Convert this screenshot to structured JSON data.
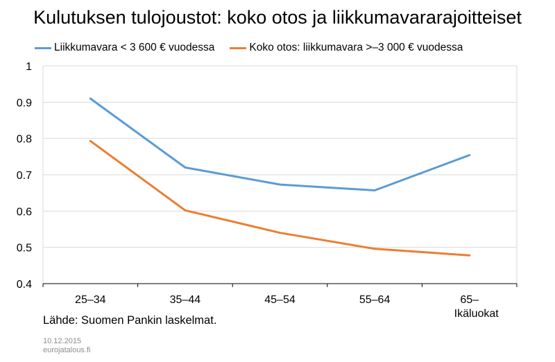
{
  "chart_data": {
    "type": "line",
    "title": "Kulutuksen tulojoustot: koko otos ja liikkumavararajoitteiset",
    "xlabel": "Ikäluokat",
    "ylabel": "",
    "categories": [
      "25–34",
      "35–44",
      "45–54",
      "55–64",
      "65–"
    ],
    "series": [
      {
        "name": "Liikkumavara < 3 600 € vuodessa",
        "color": "#5b9bd5",
        "values": [
          0.91,
          0.72,
          0.673,
          0.657,
          0.754
        ]
      },
      {
        "name": "Koko otos: liikkumavara >–3 000 € vuodessa",
        "color": "#ed7d31",
        "values": [
          0.793,
          0.602,
          0.54,
          0.496,
          0.478
        ]
      }
    ],
    "ylim": [
      0.4,
      1.0
    ],
    "yticks": [
      "0.4",
      "0.5",
      "0.6",
      "0.7",
      "0.8",
      "0.9",
      "1"
    ],
    "grid": true,
    "legend_position": "top"
  },
  "source_text": "Lähde: Suomen Pankin laskelmat.",
  "footer": {
    "date": "10.12.2015",
    "site": "eurojatalous.fi"
  }
}
